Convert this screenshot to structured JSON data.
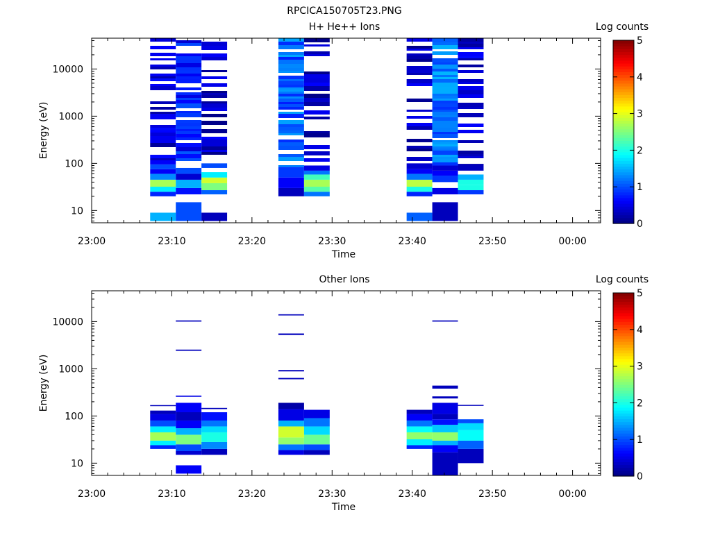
{
  "figure_title": "RPCICA150705T23.PNG",
  "colorbar_label": "Log counts",
  "colorbar_range": [
    0,
    5
  ],
  "colorbar_ticks": [
    "0",
    "1",
    "2",
    "3",
    "4",
    "5"
  ],
  "colormap": [
    "#00007f",
    "#0000ff",
    "#007fff",
    "#00ffff",
    "#7fff7f",
    "#ffff00",
    "#ff7f00",
    "#ff0000",
    "#7f0000"
  ],
  "chart_data": [
    {
      "type": "heatmap",
      "title": "H+ He++ Ions",
      "xlabel": "Time",
      "ylabel": "Energy (eV)",
      "x_ticks": [
        "23:00",
        "23:10",
        "23:20",
        "23:30",
        "23:40",
        "23:50",
        "00:00"
      ],
      "x_tick_minutes": [
        0,
        10,
        20,
        30,
        40,
        50,
        60
      ],
      "xlim_minutes": [
        0,
        63.5
      ],
      "y_scale": "log",
      "ylim": [
        5.5,
        45000
      ],
      "y_ticks": [
        "10",
        "100",
        "1000",
        "10000"
      ],
      "y_tick_values": [
        10,
        100,
        1000,
        10000
      ],
      "columns": [
        {
          "t0": 7.3,
          "t1": 10.5,
          "dense": 0.55,
          "rows": [
            [
              6,
              9,
              1.5
            ],
            [
              9,
              20,
              -1
            ],
            [
              20,
              25,
              0.8
            ],
            [
              25,
              32,
              1.8
            ],
            [
              32,
              45,
              2.7
            ],
            [
              45,
              60,
              1.3
            ],
            [
              60,
              75,
              0.6
            ],
            [
              75,
              95,
              1.0
            ],
            [
              95,
              45000,
              0.35
            ]
          ]
        },
        {
          "t0": 10.5,
          "t1": 13.7,
          "dense": 0.8,
          "rows": [
            [
              6,
              15,
              1.0
            ],
            [
              15,
              22,
              -1
            ],
            [
              22,
              30,
              0.7
            ],
            [
              30,
              45,
              1.5
            ],
            [
              45,
              60,
              0.4
            ],
            [
              60,
              80,
              1.0
            ],
            [
              80,
              105,
              -1
            ],
            [
              105,
              45000,
              0.75
            ]
          ]
        },
        {
          "t0": 13.7,
          "t1": 16.9,
          "dense": 0.55,
          "rows": [
            [
              6,
              9,
              0.3
            ],
            [
              9,
              22,
              -1
            ],
            [
              22,
              27,
              1.1
            ],
            [
              27,
              38,
              2.5
            ],
            [
              38,
              50,
              2.9
            ],
            [
              50,
              65,
              1.8
            ],
            [
              65,
              80,
              -1
            ],
            [
              80,
              100,
              1.0
            ],
            [
              100,
              45000,
              0.3
            ]
          ]
        },
        {
          "t0": 23.3,
          "t1": 26.5,
          "dense": 0.85,
          "rows": [
            [
              20,
              30,
              0.3
            ],
            [
              30,
              50,
              0.6
            ],
            [
              50,
              80,
              0.9
            ],
            [
              80,
              45000,
              1.1
            ]
          ]
        },
        {
          "t0": 26.5,
          "t1": 29.7,
          "dense": 0.55,
          "rows": [
            [
              20,
              25,
              1.2
            ],
            [
              25,
              32,
              2.3
            ],
            [
              32,
              45,
              2.7
            ],
            [
              45,
              58,
              2.2
            ],
            [
              58,
              70,
              1.2
            ],
            [
              70,
              90,
              0.5
            ],
            [
              90,
              45000,
              0.3
            ]
          ]
        },
        {
          "t0": 39.3,
          "t1": 42.5,
          "dense": 0.5,
          "rows": [
            [
              6,
              9,
              1.1
            ],
            [
              9,
              20,
              -1
            ],
            [
              20,
              25,
              0.8
            ],
            [
              25,
              32,
              2.0
            ],
            [
              32,
              45,
              2.8
            ],
            [
              45,
              60,
              1.2
            ],
            [
              60,
              75,
              0.6
            ],
            [
              75,
              100,
              0.4
            ],
            [
              100,
              45000,
              0.25
            ]
          ]
        },
        {
          "t0": 42.5,
          "t1": 45.7,
          "dense": 0.85,
          "rows": [
            [
              6,
              15,
              0.3
            ],
            [
              15,
              22,
              -1
            ],
            [
              22,
              30,
              0.5
            ],
            [
              30,
              40,
              -1
            ],
            [
              40,
              55,
              0.9
            ],
            [
              55,
              70,
              0.6
            ],
            [
              70,
              90,
              0.4
            ],
            [
              90,
              45000,
              1.2
            ]
          ]
        },
        {
          "t0": 45.7,
          "t1": 48.9,
          "dense": 0.55,
          "rows": [
            [
              22,
              27,
              0.9
            ],
            [
              27,
              35,
              2.0
            ],
            [
              35,
              45,
              2.0
            ],
            [
              45,
              58,
              1.5
            ],
            [
              58,
              70,
              -1
            ],
            [
              70,
              95,
              0.3
            ],
            [
              95,
              45000,
              0.5
            ]
          ]
        }
      ]
    },
    {
      "type": "heatmap",
      "title": "Other Ions",
      "xlabel": "Time",
      "ylabel": "Energy (eV)",
      "x_ticks": [
        "23:00",
        "23:10",
        "23:20",
        "23:30",
        "23:40",
        "23:50",
        "00:00"
      ],
      "x_tick_minutes": [
        0,
        10,
        20,
        30,
        40,
        50,
        60
      ],
      "xlim_minutes": [
        0,
        63.5
      ],
      "y_scale": "log",
      "ylim": [
        5.5,
        45000
      ],
      "y_ticks": [
        "10",
        "100",
        "1000",
        "10000"
      ],
      "y_tick_values": [
        10,
        100,
        1000,
        10000
      ],
      "columns": [
        {
          "t0": 7.3,
          "t1": 10.5,
          "dense": 0,
          "rows": [
            [
              20,
              24,
              0.8
            ],
            [
              24,
              30,
              1.8
            ],
            [
              30,
              45,
              2.7
            ],
            [
              45,
              60,
              1.8
            ],
            [
              60,
              80,
              1.0
            ],
            [
              80,
              110,
              0.5
            ],
            [
              110,
              130,
              0.3
            ],
            [
              165,
              170,
              0.3
            ]
          ]
        },
        {
          "t0": 10.5,
          "t1": 13.7,
          "dense": 0,
          "rows": [
            [
              6,
              9,
              0.6
            ],
            [
              15,
              18,
              0.4
            ],
            [
              18,
              25,
              1.0
            ],
            [
              25,
              40,
              2.5
            ],
            [
              40,
              55,
              1.5
            ],
            [
              55,
              80,
              0.6
            ],
            [
              80,
              120,
              0.3
            ],
            [
              120,
              190,
              0.6
            ],
            [
              255,
              270,
              0.5
            ],
            [
              2400,
              2550,
              0.3
            ],
            [
              10000,
              10600,
              0.3
            ]
          ]
        },
        {
          "t0": 13.7,
          "t1": 16.9,
          "dense": 0,
          "rows": [
            [
              15,
              20,
              0.3
            ],
            [
              20,
              28,
              1.3
            ],
            [
              28,
              45,
              2.0
            ],
            [
              45,
              60,
              1.7
            ],
            [
              60,
              80,
              1.2
            ],
            [
              80,
              120,
              0.7
            ],
            [
              140,
              148,
              0.3
            ]
          ]
        },
        {
          "t0": 23.3,
          "t1": 26.5,
          "dense": 0,
          "rows": [
            [
              15,
              19,
              0.5
            ],
            [
              19,
              25,
              1.2
            ],
            [
              25,
              35,
              2.6
            ],
            [
              35,
              60,
              2.9
            ],
            [
              60,
              80,
              1.5
            ],
            [
              80,
              140,
              0.5
            ],
            [
              140,
              190,
              0.2
            ],
            [
              600,
              640,
              0.3
            ],
            [
              880,
              940,
              0.3
            ],
            [
              5200,
              5600,
              0.3
            ],
            [
              13500,
              14300,
              0.3
            ]
          ]
        },
        {
          "t0": 26.5,
          "t1": 29.7,
          "dense": 0,
          "rows": [
            [
              15,
              19,
              0.3
            ],
            [
              19,
              25,
              1.0
            ],
            [
              25,
              40,
              2.4
            ],
            [
              40,
              60,
              1.7
            ],
            [
              60,
              90,
              1.2
            ],
            [
              90,
              135,
              0.5
            ]
          ]
        },
        {
          "t0": 39.3,
          "t1": 42.5,
          "dense": 0,
          "rows": [
            [
              20,
              24,
              0.8
            ],
            [
              24,
              32,
              1.8
            ],
            [
              32,
              45,
              2.6
            ],
            [
              45,
              60,
              1.9
            ],
            [
              60,
              80,
              1.2
            ],
            [
              80,
              110,
              0.6
            ],
            [
              110,
              135,
              0.3
            ]
          ]
        },
        {
          "t0": 42.5,
          "t1": 45.7,
          "dense": 0,
          "rows": [
            [
              5.5,
              17,
              0.3
            ],
            [
              17,
              24,
              0.6
            ],
            [
              24,
              30,
              1.5
            ],
            [
              30,
              45,
              2.6
            ],
            [
              45,
              65,
              1.6
            ],
            [
              65,
              85,
              0.7
            ],
            [
              85,
              110,
              0.3
            ],
            [
              110,
              190,
              0.5
            ],
            [
              235,
              260,
              0.3
            ],
            [
              380,
              440,
              0.3
            ],
            [
              10000,
              10600,
              0.3
            ]
          ]
        },
        {
          "t0": 45.7,
          "t1": 48.9,
          "dense": 0,
          "rows": [
            [
              10,
              20,
              0.3
            ],
            [
              20,
              30,
              1.1
            ],
            [
              30,
              50,
              1.9
            ],
            [
              50,
              70,
              1.7
            ],
            [
              70,
              85,
              1.0
            ],
            [
              165,
              172,
              0.3
            ]
          ]
        }
      ]
    }
  ]
}
